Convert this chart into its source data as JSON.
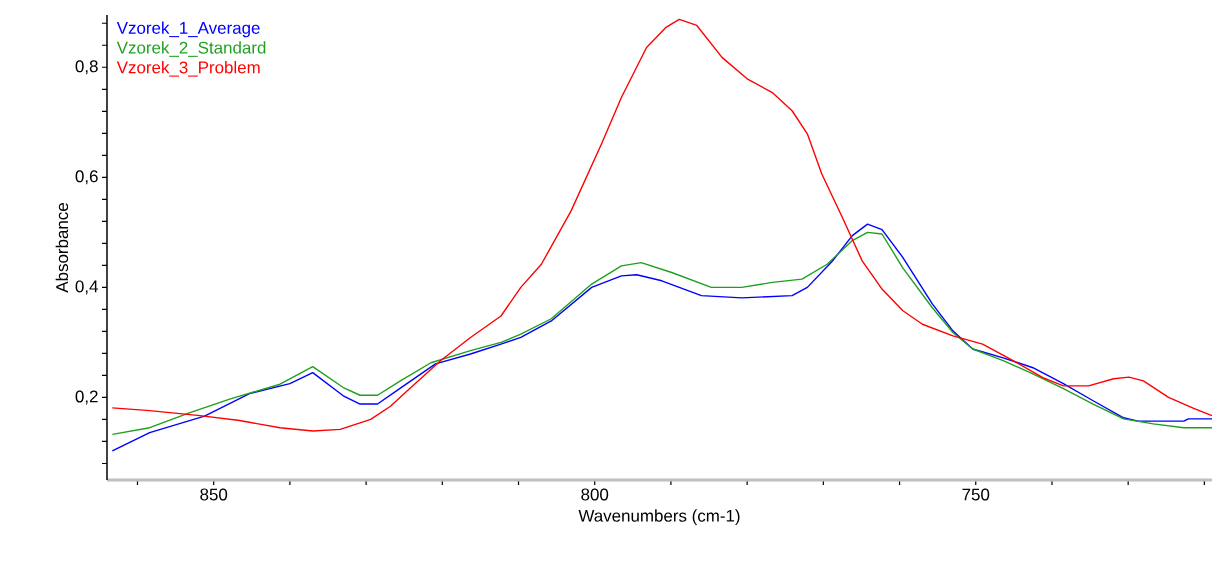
{
  "chart_data": {
    "type": "line",
    "xlabel": "Wavenumbers (cm-1)",
    "ylabel": "Absorbance",
    "xlim": [
      864,
      719
    ],
    "ylim": [
      0.05,
      0.895
    ],
    "xticks": [
      {
        "value": 860,
        "label": null
      },
      {
        "value": 850,
        "label": "850"
      },
      {
        "value": 840,
        "label": null
      },
      {
        "value": 830,
        "label": null
      },
      {
        "value": 820,
        "label": null
      },
      {
        "value": 810,
        "label": null
      },
      {
        "value": 800,
        "label": "800"
      },
      {
        "value": 790,
        "label": null
      },
      {
        "value": 780,
        "label": null
      },
      {
        "value": 770,
        "label": null
      },
      {
        "value": 760,
        "label": null
      },
      {
        "value": 750,
        "label": "750"
      },
      {
        "value": 740,
        "label": null
      },
      {
        "value": 730,
        "label": null
      },
      {
        "value": 720,
        "label": null
      }
    ],
    "yticks": [
      {
        "value": 0.08,
        "label": null
      },
      {
        "value": 0.12,
        "label": null
      },
      {
        "value": 0.16,
        "label": null
      },
      {
        "value": 0.2,
        "label": "0,2"
      },
      {
        "value": 0.24,
        "label": null
      },
      {
        "value": 0.28,
        "label": null
      },
      {
        "value": 0.32,
        "label": null
      },
      {
        "value": 0.36,
        "label": null
      },
      {
        "value": 0.4,
        "label": "0,4"
      },
      {
        "value": 0.44,
        "label": null
      },
      {
        "value": 0.48,
        "label": null
      },
      {
        "value": 0.52,
        "label": null
      },
      {
        "value": 0.56,
        "label": null
      },
      {
        "value": 0.6,
        "label": "0,6"
      },
      {
        "value": 0.64,
        "label": null
      },
      {
        "value": 0.68,
        "label": null
      },
      {
        "value": 0.72,
        "label": null
      },
      {
        "value": 0.76,
        "label": null
      },
      {
        "value": 0.8,
        "label": "0,8"
      },
      {
        "value": 0.84,
        "label": null
      },
      {
        "value": 0.88,
        "label": null
      }
    ],
    "grid": false,
    "legend": "top left",
    "marker": "none",
    "line_style": "solid",
    "series": [
      {
        "name": "Vzorek_1_Average",
        "color": "#0000ff",
        "x": [
          863.3,
          858.4,
          851.2,
          845.3,
          840,
          837,
          833,
          830.8,
          828.5,
          825.5,
          820.9,
          816.3,
          812.3,
          809.7,
          805.7,
          800.4,
          796.5,
          794.5,
          791.2,
          786,
          780.7,
          774.1,
          772.1,
          768.8,
          766.2,
          764.2,
          762.3,
          759.6,
          755.7,
          753,
          750.4,
          746.4,
          742.5,
          738.5,
          734.6,
          730.6,
          728.7,
          722.7,
          722.1,
          719
        ],
        "values": [
          0.103,
          0.136,
          0.166,
          0.207,
          0.225,
          0.245,
          0.203,
          0.188,
          0.188,
          0.217,
          0.261,
          0.279,
          0.297,
          0.309,
          0.339,
          0.4,
          0.421,
          0.423,
          0.412,
          0.385,
          0.381,
          0.385,
          0.4,
          0.448,
          0.494,
          0.515,
          0.505,
          0.455,
          0.37,
          0.321,
          0.288,
          0.272,
          0.254,
          0.225,
          0.194,
          0.163,
          0.157,
          0.157,
          0.161,
          0.161
        ]
      },
      {
        "name": "Vzorek_2_Standard",
        "color": "#1ea01e",
        "x": [
          863.3,
          858.4,
          853.2,
          847.9,
          841.3,
          837,
          833,
          830.8,
          828.5,
          825.5,
          821.5,
          816.3,
          812.3,
          809.7,
          805.7,
          800.4,
          796.5,
          793.9,
          789.9,
          784.7,
          780.7,
          776.7,
          772.8,
          769.5,
          766.2,
          764.2,
          762.3,
          759.6,
          755.7,
          753,
          750.4,
          746.4,
          742.5,
          738.5,
          734.6,
          730.6,
          726.7,
          722.7,
          719
        ],
        "values": [
          0.133,
          0.145,
          0.172,
          0.197,
          0.224,
          0.256,
          0.218,
          0.204,
          0.204,
          0.23,
          0.263,
          0.285,
          0.3,
          0.315,
          0.343,
          0.406,
          0.439,
          0.445,
          0.427,
          0.4,
          0.4,
          0.409,
          0.415,
          0.442,
          0.485,
          0.5,
          0.497,
          0.436,
          0.363,
          0.318,
          0.288,
          0.267,
          0.243,
          0.216,
          0.188,
          0.161,
          0.152,
          0.145,
          0.145
        ]
      },
      {
        "name": "Vzorek_3_Problem",
        "color": "#ff0000",
        "x": [
          863.3,
          858.4,
          851.8,
          846.6,
          841.3,
          837,
          833.4,
          829.4,
          826.8,
          824.2,
          820.2,
          816.3,
          812.3,
          809.7,
          807,
          803.1,
          799.1,
          796.5,
          793.2,
          790.6,
          788.9,
          786.6,
          783.3,
          780,
          776.7,
          774.1,
          772.1,
          770.2,
          767.5,
          764.9,
          762.3,
          759.6,
          757,
          753,
          749.1,
          745.1,
          741.2,
          738.5,
          735.2,
          731.9,
          729.9,
          728,
          724.7,
          721.4,
          719
        ],
        "values": [
          0.181,
          0.176,
          0.167,
          0.158,
          0.145,
          0.139,
          0.142,
          0.16,
          0.184,
          0.217,
          0.267,
          0.309,
          0.348,
          0.4,
          0.442,
          0.539,
          0.661,
          0.745,
          0.836,
          0.873,
          0.887,
          0.876,
          0.818,
          0.779,
          0.754,
          0.721,
          0.679,
          0.606,
          0.527,
          0.448,
          0.397,
          0.358,
          0.333,
          0.312,
          0.297,
          0.267,
          0.236,
          0.221,
          0.221,
          0.234,
          0.237,
          0.23,
          0.2,
          0.18,
          0.167
        ]
      }
    ]
  }
}
